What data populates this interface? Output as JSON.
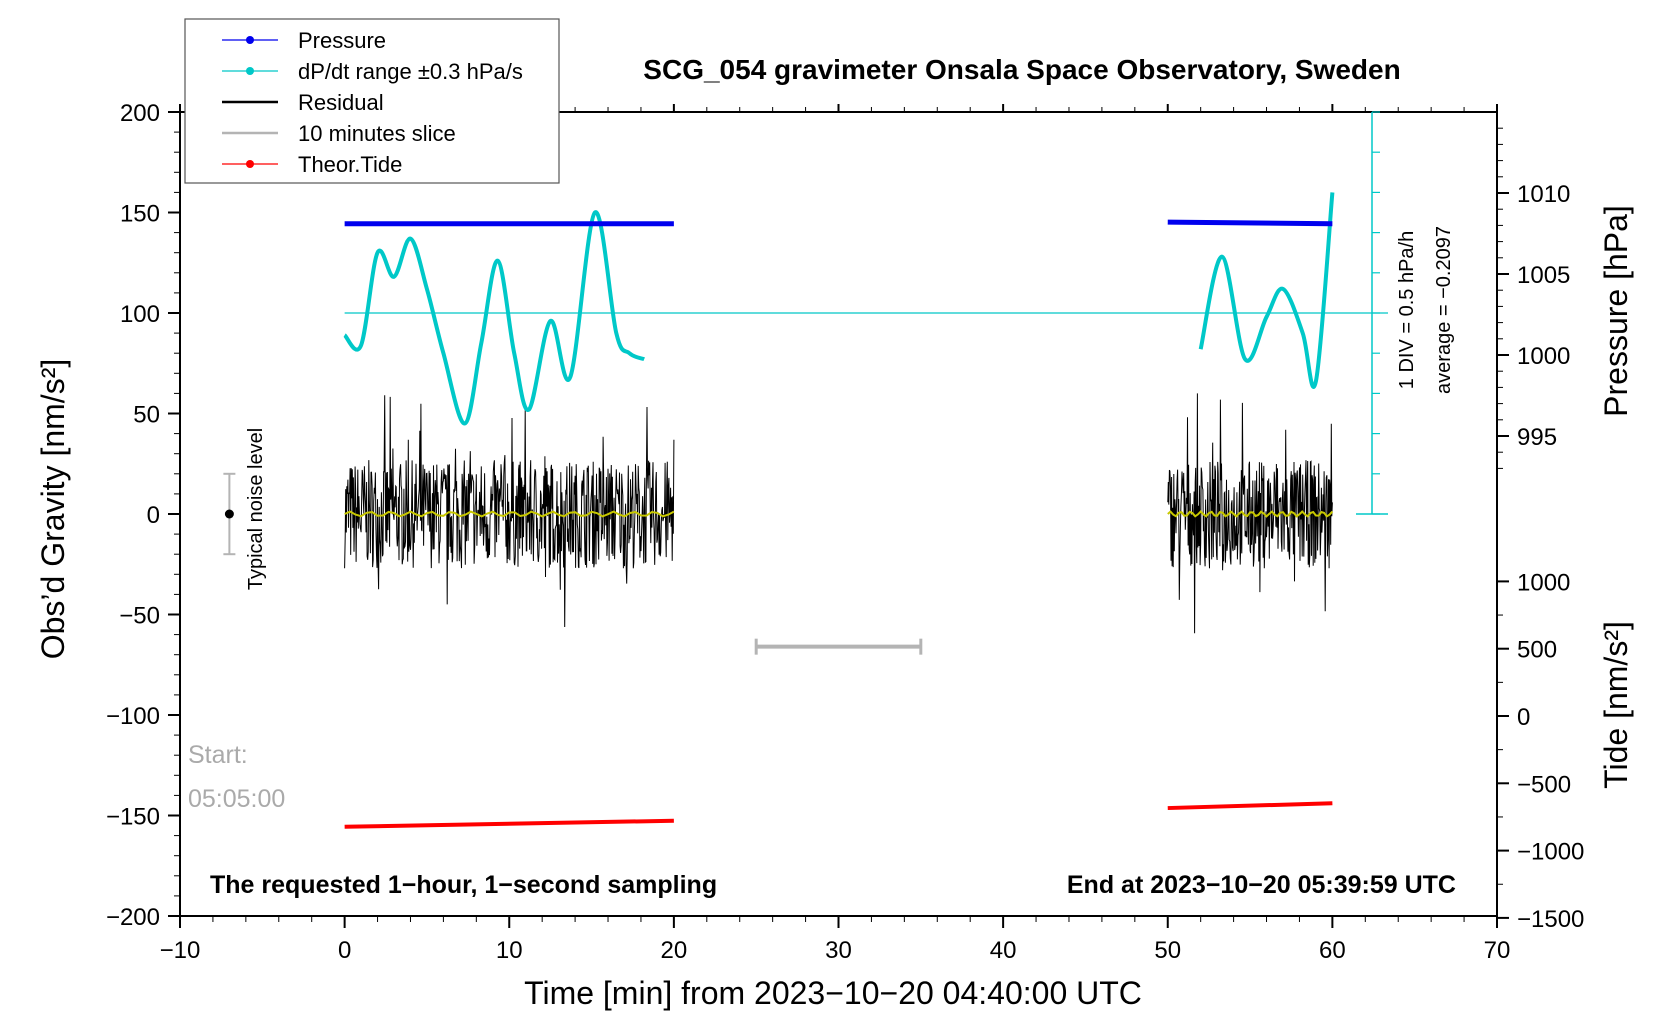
{
  "chart_data": {
    "type": "line",
    "title": "SCG_054 gravimeter Onsala Space Observatory, Sweden",
    "xlabel": "Time [min] from 2023−10−20 04:40:00 UTC",
    "ylabel_left": "Obs’d Gravity [nm/s²]",
    "ylabel_right_pressure": "Pressure [hPa]",
    "ylabel_right_tide": "Tide [nm/s²]",
    "xlim": [
      -10,
      70
    ],
    "ylim_gravity": [
      -200,
      200
    ],
    "ylim_pressure_ticks": [
      995,
      1000,
      1005,
      1010
    ],
    "ylim_tide_ticks": [
      -1500,
      -1000,
      -500,
      0,
      500,
      1000
    ],
    "x_ticks": [
      -10,
      0,
      10,
      20,
      30,
      40,
      50,
      60,
      70
    ],
    "x_tick_labels": [
      "−10",
      "0",
      "10",
      "20",
      "30",
      "40",
      "50",
      "60",
      "70"
    ],
    "y_ticks": [
      -200,
      -150,
      -100,
      -50,
      0,
      50,
      100,
      150,
      200
    ],
    "y_tick_labels": [
      "−200",
      "−150",
      "−100",
      "−50",
      "0",
      "50",
      "100",
      "150",
      "200"
    ],
    "pressure_tick_labels": [
      "995",
      "1000",
      "1005",
      "1010"
    ],
    "tide_tick_labels": [
      "−1500",
      "−1000",
      "−500",
      "0",
      "500",
      "1000"
    ],
    "legend": [
      {
        "label": "Pressure",
        "color": "#0000ee",
        "marker": true
      },
      {
        "label": "dP/dt range ±0.3 hPa/s",
        "color": "#00c8c8",
        "marker": true
      },
      {
        "label": "Residual",
        "color": "#000000",
        "marker": false
      },
      {
        "label": "10 minutes slice",
        "color": "#b4b4b4",
        "marker": false
      },
      {
        "label": "Theor.Tide",
        "color": "#ff0000",
        "marker": true
      }
    ],
    "segments": [
      {
        "x_start": 0,
        "x_end": 20
      },
      {
        "x_start": 50,
        "x_end": 60
      }
    ],
    "series": [
      {
        "name": "Pressure",
        "unit": "hPa",
        "color": "#0000ee",
        "points": [
          [
            0,
            1008.1
          ],
          [
            20,
            1008.1
          ],
          [
            50,
            1008.2
          ],
          [
            60,
            1008.1
          ]
        ]
      },
      {
        "name": "dP/dt",
        "color": "#00c8c8",
        "axis": "gravity_scale",
        "segment1": [
          [
            0,
            89
          ],
          [
            1,
            84
          ],
          [
            2,
            130
          ],
          [
            3,
            118
          ],
          [
            4,
            137
          ],
          [
            5,
            112
          ],
          [
            6,
            80
          ],
          [
            7.3,
            45
          ],
          [
            8.3,
            85
          ],
          [
            9.3,
            126
          ],
          [
            10.3,
            80
          ],
          [
            11.2,
            52
          ],
          [
            12.5,
            96
          ],
          [
            13.7,
            68
          ],
          [
            15.2,
            150
          ],
          [
            16.5,
            90
          ],
          [
            17.3,
            80
          ],
          [
            18.2,
            77
          ]
        ],
        "segment2": [
          [
            52,
            82
          ],
          [
            53.3,
            128
          ],
          [
            54.7,
            77
          ],
          [
            56,
            98
          ],
          [
            57,
            112
          ],
          [
            58.2,
            90
          ],
          [
            59,
            66
          ],
          [
            60,
            160
          ]
        ]
      },
      {
        "name": "Residual",
        "color": "#000000",
        "amplitude_nm_s2": 60
      },
      {
        "name": "Residual mean",
        "color": "#c8c800",
        "value": 0
      },
      {
        "name": "Theor.Tide",
        "color": "#ff0000",
        "axis": "gravity_scale",
        "points": [
          [
            0,
            -155.6
          ],
          [
            20,
            -152.6
          ],
          [
            50,
            -146.3
          ],
          [
            60,
            -143.9
          ]
        ]
      }
    ],
    "dpdt_reference_level": 100,
    "ten_minute_slice": {
      "x_start": 25,
      "x_end": 35,
      "y": -66
    },
    "noise_level": {
      "x": -7,
      "center": 0,
      "half_range": 20,
      "label": "Typical noise level"
    },
    "scale_bar": {
      "label1": "1 DIV = 0.5 hPa/h",
      "label2": "average = −0.2097"
    },
    "start_label": "Start:",
    "start_time": "05:05:00",
    "footer_left": "The requested 1−hour, 1−second sampling",
    "footer_right": "End at 2023−10−20 05:39:59 UTC"
  }
}
